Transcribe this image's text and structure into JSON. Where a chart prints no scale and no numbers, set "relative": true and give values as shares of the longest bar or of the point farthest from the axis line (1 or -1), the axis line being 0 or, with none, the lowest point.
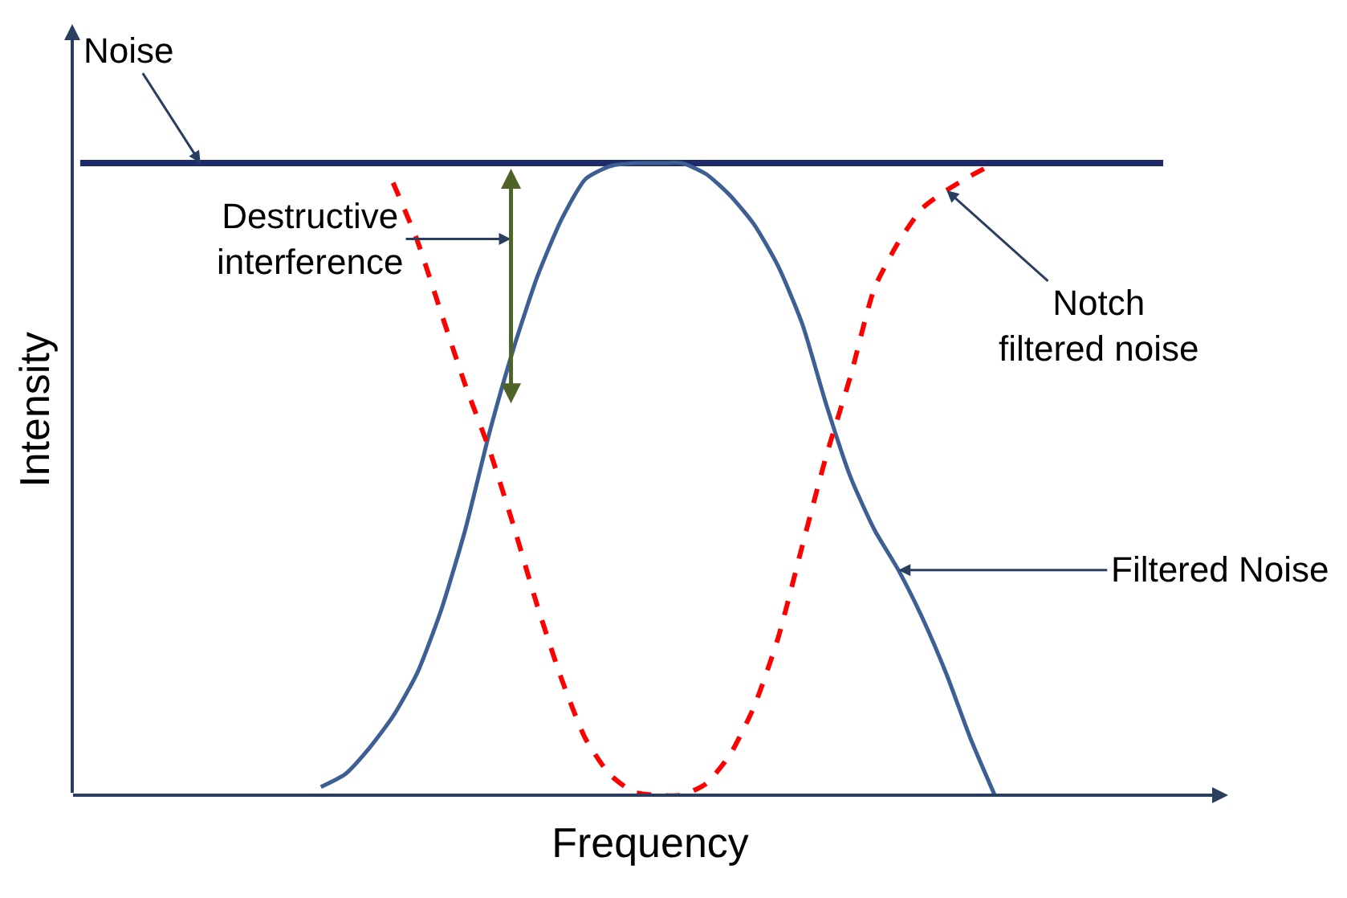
{
  "chart_data": {
    "type": "line",
    "relative": true,
    "xlabel": "Frequency",
    "ylabel": "Intensity",
    "categories": [
      null,
      null,
      null,
      null,
      null,
      null,
      null,
      null,
      null,
      null,
      null,
      null,
      null,
      null,
      null,
      null,
      null,
      null,
      null,
      null,
      null,
      null,
      null,
      null,
      null,
      null,
      null,
      null,
      null,
      null,
      null,
      null,
      null,
      null,
      null,
      null,
      null,
      null,
      null,
      null,
      null,
      null,
      null,
      null,
      null,
      null
    ],
    "series": [
      {
        "name": "Noise",
        "color": "#1f2a6b",
        "line_style": "solid",
        "values": [
          1,
          1,
          1,
          1,
          1,
          1,
          1,
          1,
          1,
          1,
          1,
          1,
          1,
          1,
          1,
          1,
          1,
          1,
          1,
          1,
          1,
          1,
          1,
          1,
          1,
          1,
          1,
          1,
          1,
          1,
          1,
          1,
          1,
          1,
          1,
          1,
          1,
          1,
          1,
          1,
          1,
          1,
          1,
          1,
          1,
          1
        ]
      },
      {
        "name": "Filtered Noise",
        "color": "#3e5f94",
        "line_style": "solid",
        "values": [
          null,
          null,
          null,
          null,
          null,
          null,
          null,
          null,
          null,
          null,
          0.013,
          0.033,
          0.074,
          0.125,
          0.193,
          0.293,
          0.42,
          0.573,
          0.706,
          0.821,
          0.911,
          0.975,
          0.995,
          1,
          1,
          1,
          0.983,
          0.949,
          0.903,
          0.837,
          0.746,
          0.618,
          0.504,
          0.42,
          0.356,
          0.28,
          0.191,
          0.089,
          0,
          null,
          null,
          null,
          null,
          null,
          null,
          null
        ]
      },
      {
        "name": "Notch filtered noise",
        "color": "#ff0000",
        "line_style": "dashed",
        "values": [
          null,
          null,
          null,
          null,
          null,
          null,
          null,
          null,
          null,
          null,
          null,
          null,
          null,
          0.969,
          0.878,
          0.763,
          0.649,
          0.547,
          0.427,
          0.299,
          0.184,
          0.089,
          0.033,
          0.005,
          0,
          0,
          0.018,
          0.064,
          0.14,
          0.249,
          0.394,
          0.537,
          0.662,
          0.802,
          0.875,
          0.929,
          0.957,
          0.98,
          1,
          null,
          null,
          null,
          null,
          null,
          null,
          null
        ]
      }
    ],
    "annotations": [
      "Destructive interference"
    ],
    "legend": false,
    "marker": "none"
  }
}
